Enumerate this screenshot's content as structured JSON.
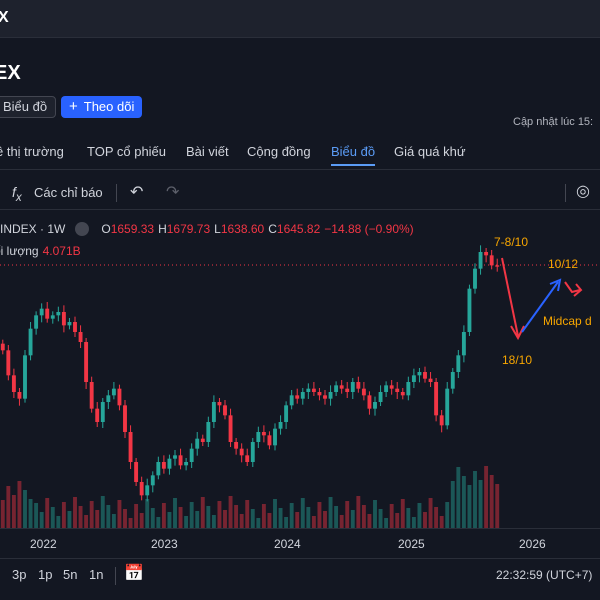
{
  "window": {
    "title_fragment": "X"
  },
  "header": {
    "symbol_title": "EX",
    "chart_button": "Biểu đồ",
    "follow_button": "Theo dõi",
    "updated_label": "Cập nhật lúc  15:"
  },
  "tabs": [
    {
      "label": "ê thị trường"
    },
    {
      "label": "TOP cổ phiếu"
    },
    {
      "label": "Bài viết"
    },
    {
      "label": "Cộng đồng"
    },
    {
      "label": "Biểu đồ",
      "active": true
    },
    {
      "label": "Giá quá khứ"
    }
  ],
  "toolbar": {
    "fx_icon": "fx-icon",
    "indicators_label": "Các chỉ báo",
    "undo_icon": "undo-icon",
    "redo_icon": "redo-icon",
    "snapshot_icon": "snapshot-icon"
  },
  "legend": {
    "symbol": "INDEX · 1W",
    "o_label": "O",
    "o_value": "1659.33",
    "h_label": "H",
    "h_value": "1679.73",
    "l_label": "L",
    "l_value": "1638.60",
    "c_label": "C",
    "c_value": "1645.82",
    "change": "−14.88 (−0.90%)",
    "volume_label": "ối lượng",
    "volume_value": "4.071B"
  },
  "annotations": {
    "peak": "7-8/10",
    "low": "18/10",
    "target": "10/12",
    "midcap": "Midcap d"
  },
  "colors": {
    "up": "#26a69a",
    "down": "#f23645",
    "annotation": "#f7a600",
    "arrow_blue": "#2962ff",
    "accent": "#2962ff",
    "background": "#131722"
  },
  "chart_data": {
    "type": "candlestick",
    "x_tick_labels": [
      "2022",
      "2023",
      "2024",
      "2025",
      "2026"
    ],
    "series": [
      {
        "values": [
          1395,
          1320,
          1270,
          1250,
          1380,
          1460,
          1500,
          1520,
          1490,
          1500,
          1510,
          1470,
          1480,
          1450,
          1420,
          1300,
          1220,
          1180,
          1240,
          1260,
          1280,
          1230,
          1150,
          1060,
          1000,
          960,
          990,
          1020,
          1060,
          1040,
          1070,
          1080,
          1050,
          1060,
          1100,
          1130,
          1120,
          1180,
          1240,
          1230,
          1200,
          1120,
          1100,
          1080,
          1060,
          1120,
          1150,
          1140,
          1110,
          1160,
          1180,
          1230,
          1260,
          1250,
          1270,
          1280,
          1270,
          1260,
          1250,
          1270,
          1290,
          1280,
          1270,
          1300,
          1280,
          1260,
          1220,
          1240,
          1270,
          1290,
          1280,
          1270,
          1260,
          1300,
          1320,
          1330,
          1310,
          1300,
          1200,
          1170,
          1280,
          1330,
          1380,
          1450,
          1580,
          1640,
          1690,
          1680,
          1650,
          1646
        ]
      }
    ],
    "volume_label": "Khối lượng",
    "last_volume": "4.071B",
    "annotations": [
      {
        "text": "7-8/10"
      },
      {
        "text": "18/10"
      },
      {
        "text": "10/12"
      },
      {
        "text": "Midcap d"
      }
    ]
  },
  "xaxis": {
    "labels": [
      "2022",
      "2023",
      "2024",
      "2025",
      "2026"
    ]
  },
  "bottombar": {
    "timeframes": [
      "3p",
      "1p",
      "5n",
      "1n"
    ],
    "calendar_icon": "calendar-range-icon",
    "clock": "22:32:59 (UTC+7)"
  }
}
